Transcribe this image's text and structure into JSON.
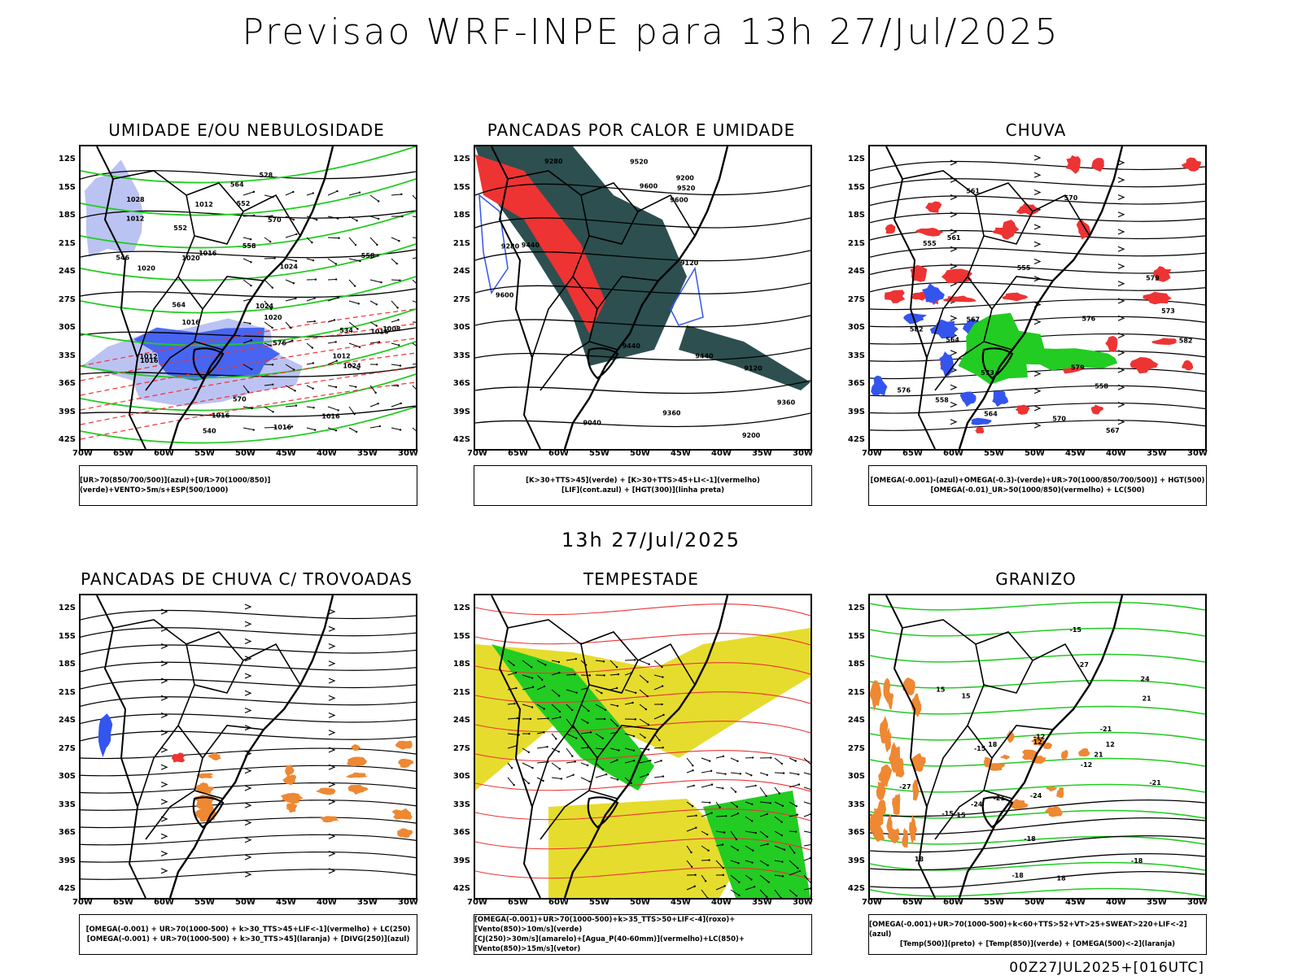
{
  "title": "Previsao WRF-INPE  para 13h 27/Jul/2025",
  "mid_title": "13h 27/Jul/2025",
  "footer": "00Z27JUL2025+[016UTC]",
  "axes": {
    "lat": [
      "12S",
      "15S",
      "18S",
      "21S",
      "24S",
      "27S",
      "30S",
      "33S",
      "36S",
      "39S",
      "42S"
    ],
    "lon": [
      "70W",
      "65W",
      "60W",
      "55W",
      "50W",
      "45W",
      "40W",
      "35W",
      "30W"
    ]
  },
  "panels": [
    {
      "title": "UMIDADE E/OU NEBULOSIDADE",
      "legend": [
        "[UR>70(850/700/500)](azul)+[UR>70(1000/850)](verde)+VENTO>5m/s+ESP(500/1000)"
      ],
      "contour_labels": [
        "1012",
        "1016",
        "1016",
        "1020",
        "1012",
        "1016",
        "1012",
        "1016",
        "1012",
        "1008",
        "1016",
        "1020",
        "1020",
        "1024",
        "1024",
        "1024",
        "1028",
        "1016",
        "1016",
        "570",
        "564",
        "558",
        "552",
        "546",
        "540",
        "534",
        "528",
        "552",
        "558",
        "564",
        "570",
        "576"
      ]
    },
    {
      "title": "PANCADAS POR CALOR E UMIDADE",
      "legend": [
        "[K>30+TTS>45](verde) + [K>30+TTS>45+LI<-1](vermelho)",
        "[LIF](cont.azul) + [HGT(300)](linha preta)"
      ],
      "contour_labels": [
        "9600",
        "9600",
        "9520",
        "9520",
        "9440",
        "9440",
        "9360",
        "9280",
        "9200",
        "9120",
        "9360",
        "9280",
        "9200",
        "9120",
        "9040",
        "9600",
        "9440"
      ]
    },
    {
      "title": "CHUVA",
      "legend": [
        "[OMEGA(-0.001)-(azul)+OMEGA(-0.3)-(verde)+UR>70(1000/850/700/500)] + HGT(500)",
        "[OMEGA(-0.01)_UR>50(1000/850)(vermelho) + LC(500)"
      ],
      "contour_labels": [
        "582",
        "579",
        "576",
        "573",
        "570",
        "567",
        "564",
        "561",
        "558",
        "555",
        "582",
        "579",
        "576",
        "573",
        "570",
        "567",
        "564",
        "561",
        "558",
        "555"
      ]
    },
    {
      "title": "PANCADAS DE CHUVA C/ TROVOADAS",
      "legend": [
        "[OMEGA(-0.001) + UR>70(1000-500) + k>30_TTS>45+LIF<-1](vermelho) + LC(250)",
        "[OMEGA(-0.001) + UR>70(1000-500) + k>30_TTS>45](laranja) + [DIVG(250)](azul)"
      ],
      "contour_labels": []
    },
    {
      "title": "TEMPESTADE",
      "legend": [
        "[OMEGA(-0.001)+UR>70(1000-500)+k>35_TTS>50+LIF<-4](roxo)+[Vento(850)>10m/s](verde)",
        "[CJ(250)>30m/s](amarelo)+[Agua_P(40-60mm)](vermelho)+LC(850)+[Vento(850)>15m/s](vetor)"
      ],
      "contour_labels": []
    },
    {
      "title": "GRANIZO",
      "legend": [
        "[OMEGA(-0.001)+UR>70(1000-500)+k<60+TTS>52+VT>25+SWEAT>220+LIF<-2](azul)",
        "[Temp(500)](preto) + [Temp(850)](verde) + [OMEGA(500)<-2](laranja)"
      ],
      "contour_labels": [
        "-12",
        "-15",
        "-18",
        "-21",
        "-15",
        "-18",
        "-12",
        "-15",
        "-18",
        "-21",
        "-24",
        "-27",
        "-21",
        "-24",
        "-27",
        "12",
        "15",
        "18",
        "21",
        "24",
        "15",
        "18",
        "21",
        "12",
        "15",
        "18"
      ]
    }
  ],
  "colors": {
    "blue": "#3355ee",
    "lightblue": "#aab4f0",
    "green": "#22cc22",
    "red": "#ee3333",
    "dark_teal": "#2d4f4f",
    "yellow": "#e6dc2e",
    "orange": "#ee8833",
    "black": "#000000"
  }
}
